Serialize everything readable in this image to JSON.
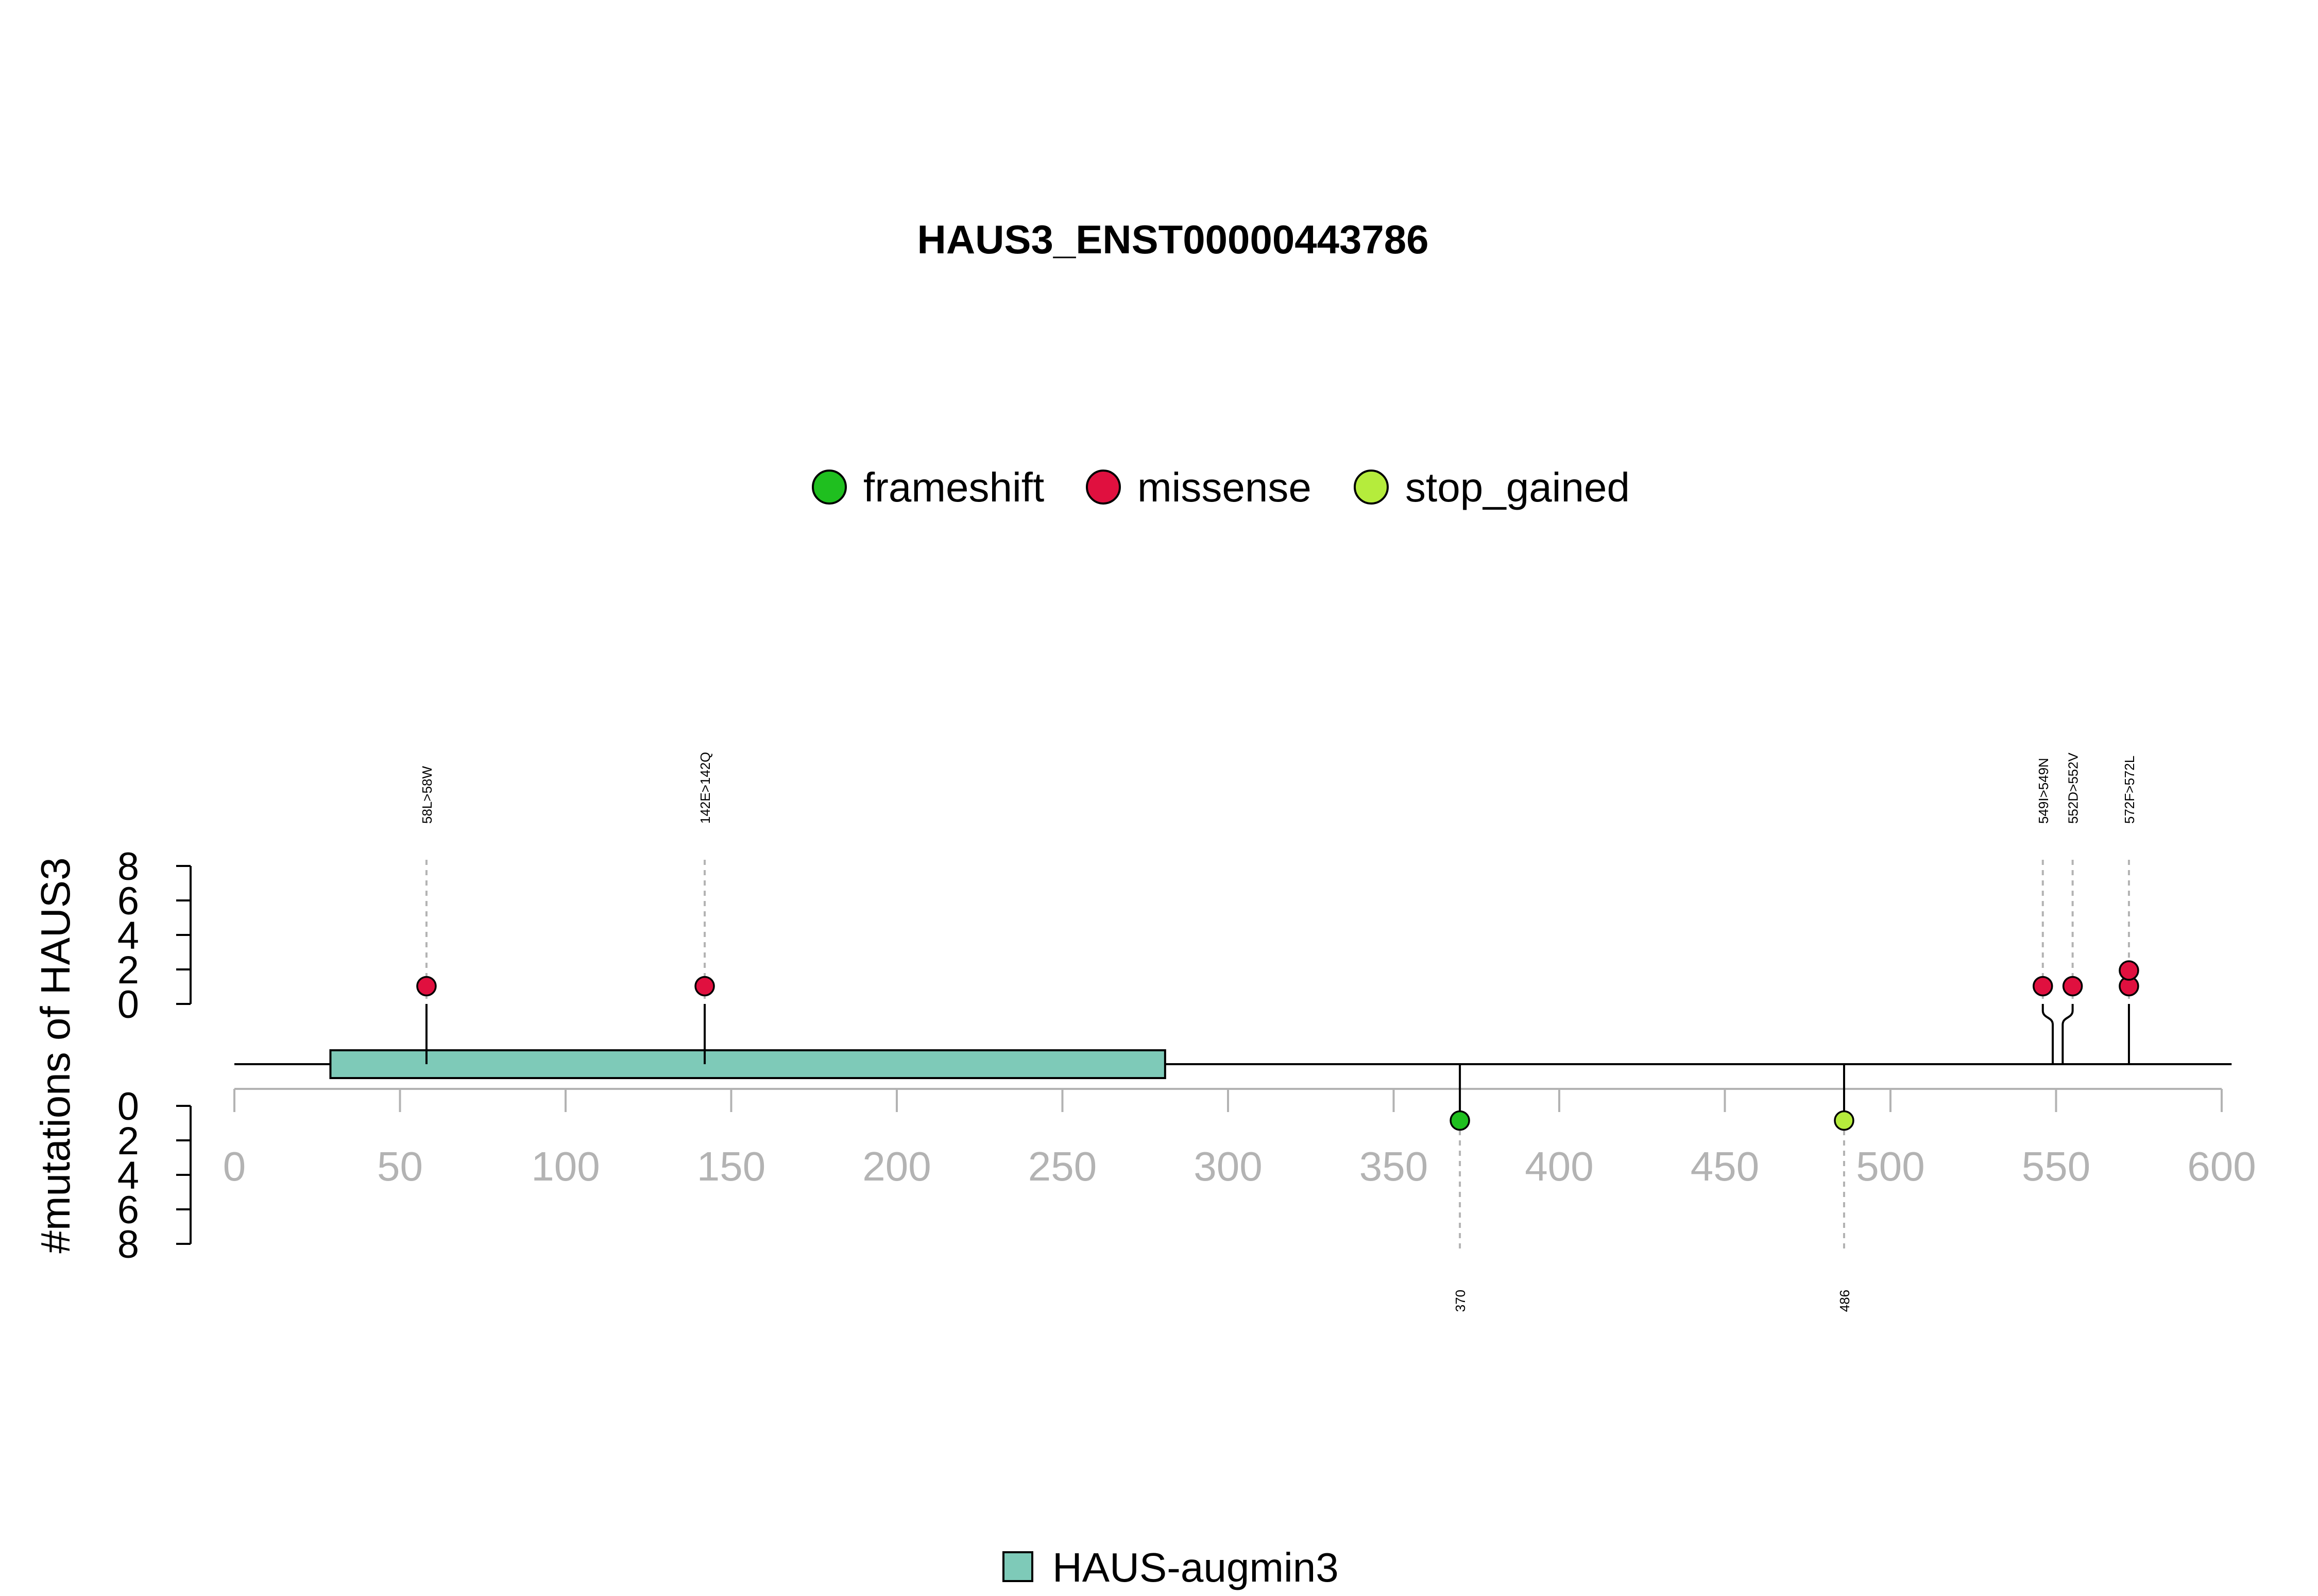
{
  "chart_data": {
    "type": "lollipop",
    "title": "HAUS3_ENST00000443786",
    "ylabel": "#mutations of HAUS3",
    "protein_length": 603,
    "x_ticks": [
      "0",
      "50",
      "100",
      "150",
      "200",
      "250",
      "300",
      "350",
      "400",
      "450",
      "500",
      "550",
      "600"
    ],
    "y_ticks_top": [
      "0",
      "2",
      "4",
      "6",
      "8"
    ],
    "y_ticks_bottom": [
      "0",
      "2",
      "4",
      "6",
      "8"
    ],
    "legend": [
      {
        "name": "frameshift",
        "color": "#1fbf1f"
      },
      {
        "name": "missense",
        "color": "#e0103f"
      },
      {
        "name": "stop_gained",
        "color": "#b5ec3c"
      }
    ],
    "domains": [
      {
        "name": "HAUS-augmin3",
        "start": 29,
        "end": 281,
        "color": "#7ecab8"
      }
    ],
    "mutations_top": [
      {
        "label": "58L>58W",
        "position": 58,
        "lollipop_x": 58,
        "type": "missense",
        "count": 1
      },
      {
        "label": "142E>142Q",
        "position": 142,
        "lollipop_x": 142,
        "type": "missense",
        "count": 1
      },
      {
        "label": "549I>549N",
        "position": 549,
        "lollipop_x": 546,
        "type": "missense",
        "count": 1
      },
      {
        "label": "552D>552V",
        "position": 552,
        "lollipop_x": 555,
        "type": "missense",
        "count": 1
      },
      {
        "label": "572F>572L",
        "position": 572,
        "lollipop_x": 572,
        "type": "missense",
        "count": 2
      }
    ],
    "mutations_bottom": [
      {
        "label": "370",
        "position": 370,
        "type": "frameshift",
        "count": 1
      },
      {
        "label": "486",
        "position": 486,
        "type": "stop_gained",
        "count": 1
      }
    ]
  }
}
